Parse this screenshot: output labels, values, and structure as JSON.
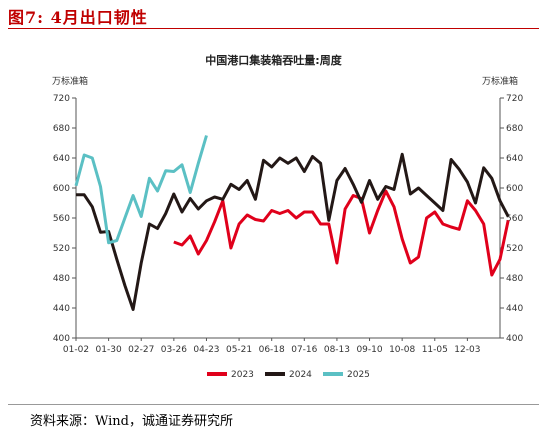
{
  "figure_title": "图7:  4月出口韧性",
  "source": "资料来源：Wind，诚通证券研究所",
  "chart_data": {
    "type": "line",
    "title": "中国港口集装箱吞吐量:周度",
    "ylabel_left": "万标准箱",
    "ylabel_right": "万标准箱",
    "ylim": [
      400,
      720
    ],
    "yticks": [
      400,
      440,
      480,
      520,
      560,
      600,
      640,
      680,
      720
    ],
    "x_ticks": [
      "01-02",
      "01-30",
      "02-27",
      "03-26",
      "04-23",
      "05-21",
      "06-18",
      "07-16",
      "08-13",
      "09-10",
      "10-08",
      "11-05",
      "12-03"
    ],
    "x_weeks": 52,
    "grid": false,
    "legend_position": "bottom",
    "colors": {
      "2023": "#e0001b",
      "2024": "#231816",
      "2025": "#5bc0c4"
    },
    "series": [
      {
        "name": "2023",
        "values": [
          null,
          null,
          null,
          null,
          null,
          null,
          null,
          null,
          null,
          null,
          null,
          null,
          528,
          524,
          536,
          512,
          530,
          555,
          583,
          520,
          552,
          564,
          558,
          556,
          570,
          566,
          570,
          560,
          568,
          568,
          552,
          552,
          500,
          572,
          590,
          586,
          540,
          570,
          596,
          575,
          532,
          500,
          508,
          560,
          568,
          552,
          548,
          545,
          583,
          570,
          552,
          484,
          505,
          557
        ]
      },
      {
        "name": "2024",
        "values": [
          591,
          591,
          575,
          541,
          542,
          505,
          470,
          438,
          500,
          552,
          546,
          566,
          592,
          568,
          586,
          572,
          583,
          588,
          585,
          605,
          598,
          610,
          585,
          637,
          628,
          640,
          633,
          640,
          622,
          642,
          633,
          557,
          610,
          626,
          605,
          581,
          610,
          585,
          602,
          598,
          645,
          592,
          600,
          590,
          580,
          570,
          638,
          625,
          608,
          580,
          627,
          613,
          583,
          562
        ]
      },
      {
        "name": "2025",
        "values": [
          603,
          644,
          640,
          602,
          527,
          530,
          560,
          590,
          562,
          613,
          596,
          623,
          622,
          631,
          594,
          633,
          670
        ]
      }
    ]
  }
}
